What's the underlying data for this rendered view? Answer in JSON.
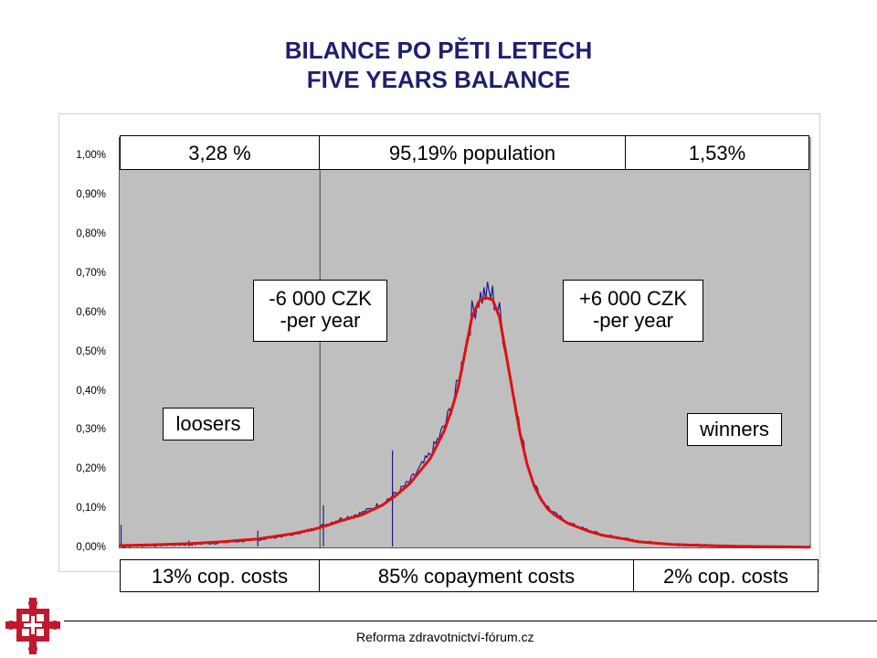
{
  "title_line1": "BILANCE PO PĚTI LETECH",
  "title_line2": "FIVE YEARS BALANCE",
  "footer": "Reforma zdravotnictví-fórum.cz",
  "colors": {
    "plot_bg": "#bfbfbf",
    "raw_series": "#1a1a8c",
    "fit_series": "#e01010",
    "logo": "#c0182c"
  },
  "chart_data": {
    "type": "line",
    "y_tick_labels": [
      "0,00%",
      "0,10%",
      "0,20%",
      "0,30%",
      "0,40%",
      "0,50%",
      "0,60%",
      "0,70%",
      "0,80%",
      "0,90%",
      "1,00%"
    ],
    "ylim": [
      0,
      1.05
    ],
    "xlim": [
      0,
      100
    ],
    "grid": false,
    "divider_x": [
      29,
      100
    ],
    "top_labels": [
      "3,28 %",
      "95,19% population",
      "1,53%"
    ],
    "bottom_labels": [
      "13% cop. costs",
      "85% copayment costs",
      "2% cop. costs"
    ],
    "annotations": {
      "left": {
        "line1": "-6 000 CZK",
        "line2": "-per year"
      },
      "right": {
        "line1": "+6 000 CZK",
        "line2": "-per year"
      },
      "loosers": "loosers",
      "winners": "winners"
    },
    "series": [
      {
        "x": [
          0,
          5,
          10,
          15,
          20,
          25,
          28,
          30,
          32,
          35,
          38,
          40,
          42,
          45,
          47,
          48,
          49,
          50,
          51,
          52,
          53,
          54,
          55,
          56,
          57,
          58,
          59,
          60,
          61,
          62,
          63,
          65,
          68,
          70,
          73,
          75,
          80,
          85,
          90,
          95,
          100
        ],
        "y": [
          0.005,
          0.008,
          0.01,
          0.015,
          0.022,
          0.035,
          0.05,
          0.062,
          0.075,
          0.09,
          0.115,
          0.14,
          0.17,
          0.24,
          0.31,
          0.36,
          0.42,
          0.51,
          0.6,
          0.64,
          0.65,
          0.645,
          0.6,
          0.5,
          0.4,
          0.3,
          0.22,
          0.165,
          0.13,
          0.105,
          0.088,
          0.065,
          0.045,
          0.035,
          0.025,
          0.018,
          0.01,
          0.007,
          0.005,
          0.004,
          0.003
        ]
      },
      {
        "x": [
          0,
          5,
          10,
          15,
          20,
          25,
          28,
          30,
          32,
          35,
          38,
          40,
          42,
          45,
          47,
          48,
          49,
          50,
          51,
          52,
          53,
          54,
          55,
          56,
          57,
          58,
          59,
          60,
          61,
          62,
          63,
          65,
          68,
          70,
          73,
          75,
          80,
          85,
          90,
          95,
          100
        ],
        "y": [
          0.007,
          0.009,
          0.012,
          0.017,
          0.024,
          0.037,
          0.048,
          0.058,
          0.07,
          0.085,
          0.11,
          0.135,
          0.165,
          0.23,
          0.3,
          0.35,
          0.41,
          0.5,
          0.59,
          0.63,
          0.64,
          0.635,
          0.59,
          0.49,
          0.39,
          0.29,
          0.215,
          0.16,
          0.125,
          0.1,
          0.085,
          0.063,
          0.043,
          0.033,
          0.024,
          0.017,
          0.01,
          0.007,
          0.005,
          0.004,
          0.003
        ]
      }
    ],
    "spikes": [
      {
        "x": 0.2,
        "y": 0.06
      },
      {
        "x": 10,
        "y": 0.02
      },
      {
        "x": 20,
        "y": 0.045
      },
      {
        "x": 29.5,
        "y": 0.11
      },
      {
        "x": 39.5,
        "y": 0.25
      },
      {
        "x": 100,
        "y": 0.01
      }
    ]
  }
}
